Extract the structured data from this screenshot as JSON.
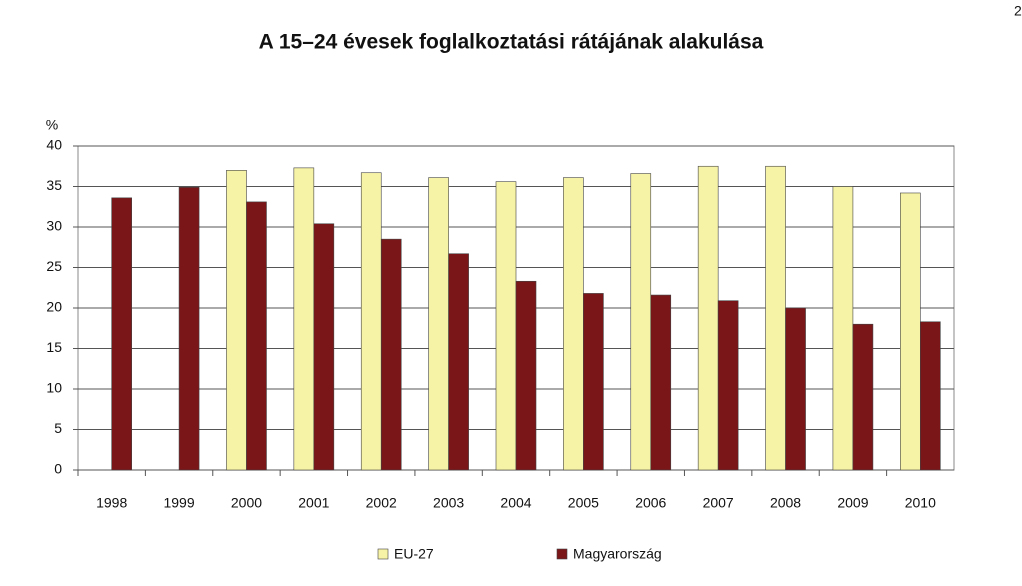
{
  "page_number": "2",
  "chart_data": {
    "type": "bar",
    "title": "A 15–24 évesek foglalkoztatási rátájának alakulása",
    "y_label": "%",
    "categories": [
      "1998",
      "1999",
      "2000",
      "2001",
      "2002",
      "2003",
      "2004",
      "2005",
      "2006",
      "2007",
      "2008",
      "2009",
      "2010"
    ],
    "series": [
      {
        "name": "EU-27",
        "color": "#f7f3a6",
        "values": [
          null,
          null,
          37.0,
          37.3,
          36.7,
          36.1,
          35.6,
          36.1,
          36.6,
          37.5,
          37.5,
          35.0,
          34.2
        ]
      },
      {
        "name": "Magyarország",
        "color": "#7a1518",
        "values": [
          33.6,
          34.9,
          33.1,
          30.4,
          28.5,
          26.7,
          23.3,
          21.8,
          21.6,
          20.9,
          20.0,
          18.0,
          18.3
        ]
      }
    ],
    "ylim": [
      0,
      40
    ],
    "yticks": [
      0,
      5,
      10,
      15,
      20,
      25,
      30,
      35,
      40
    ],
    "grid": true,
    "legend": "bottom"
  }
}
